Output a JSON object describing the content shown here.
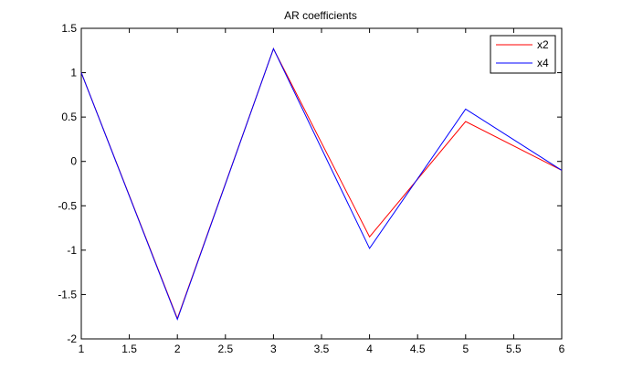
{
  "chart_data": {
    "type": "line",
    "title": "AR coefficients",
    "xlabel": "",
    "ylabel": "",
    "x": [
      1,
      2,
      3,
      4,
      5,
      6
    ],
    "xlim": [
      1,
      6
    ],
    "ylim": [
      -2,
      1.5
    ],
    "xticks": [
      "1",
      "1.5",
      "2",
      "2.5",
      "3",
      "3.5",
      "4",
      "4.5",
      "5",
      "5.5",
      "6"
    ],
    "yticks": [
      "1.5",
      "1",
      "0.5",
      "0",
      "-0.5",
      "-1",
      "-1.5",
      "-2"
    ],
    "grid": false,
    "legend_position": "top-right",
    "series": [
      {
        "name": "x2",
        "color": "#ff0000",
        "values": [
          1.0,
          -1.77,
          1.27,
          -0.85,
          0.45,
          -0.1
        ]
      },
      {
        "name": "x4",
        "color": "#0000ff",
        "values": [
          1.0,
          -1.78,
          1.27,
          -0.98,
          0.59,
          -0.1
        ]
      }
    ]
  }
}
